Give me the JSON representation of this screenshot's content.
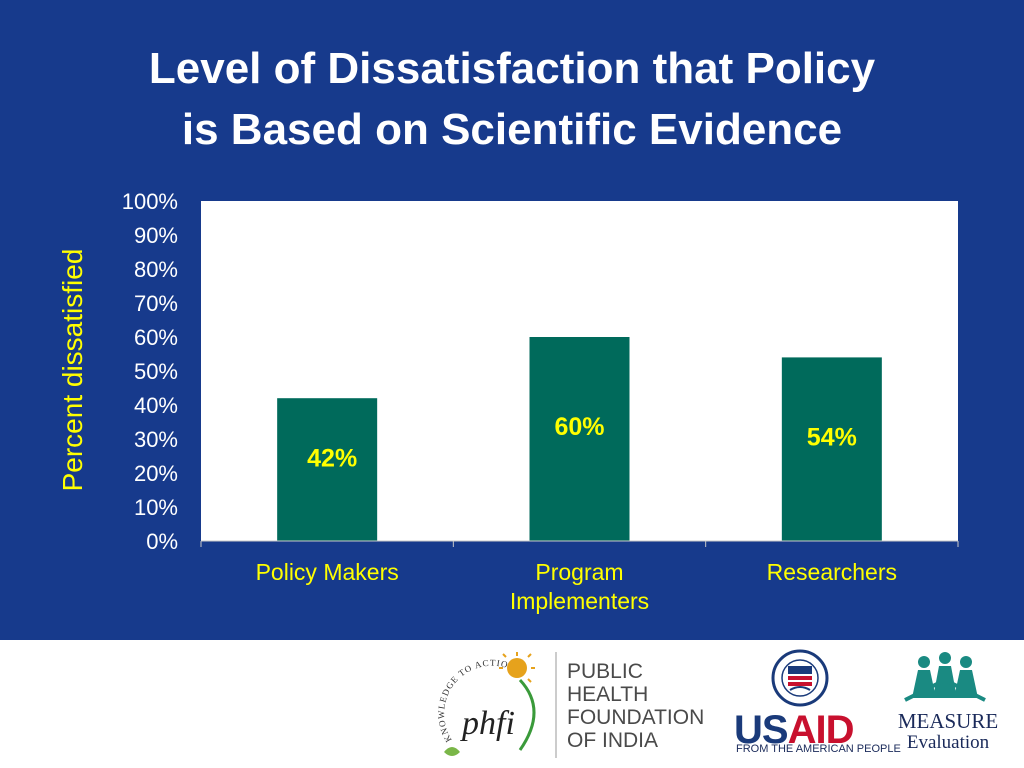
{
  "slide": {
    "title_line1": "Level of Dissatisfaction that Policy",
    "title_line2": "is Based on Scientific Evidence",
    "background_color": "#173a8c",
    "title_color": "#ffffff",
    "accent_color": "#ffff00"
  },
  "chart_data": {
    "type": "bar",
    "ylabel": "Percent dissatisfied",
    "categories": [
      [
        "Policy Makers"
      ],
      [
        "Program",
        "Implementers"
      ],
      [
        "Researchers"
      ]
    ],
    "values": [
      42,
      60,
      54
    ],
    "data_labels": [
      "42%",
      "60%",
      "54%"
    ],
    "ylim": [
      0,
      100
    ],
    "yticks": [
      0,
      10,
      20,
      30,
      40,
      50,
      60,
      70,
      80,
      90,
      100
    ],
    "ytick_labels": [
      "0%",
      "10%",
      "20%",
      "30%",
      "40%",
      "50%",
      "60%",
      "70%",
      "80%",
      "90%",
      "100%"
    ],
    "grid": false,
    "bar_color": "#006a5b",
    "plot_background": "#ffffff",
    "label_color": "#ffff00",
    "tick_color": "#ffffff"
  },
  "footer": {
    "phfi": {
      "logo_text": "phfi",
      "tagline": "KNOWLEDGE TO ACTION",
      "name_lines": [
        "PUBLIC",
        "HEALTH",
        "FOUNDATION",
        "OF INDIA"
      ]
    },
    "usaid": {
      "word_part1": "US",
      "word_part2": "AID",
      "subtitle": "FROM THE AMERICAN PEOPLE"
    },
    "measure": {
      "line1": "MEASURE",
      "line2": "Evaluation"
    }
  }
}
